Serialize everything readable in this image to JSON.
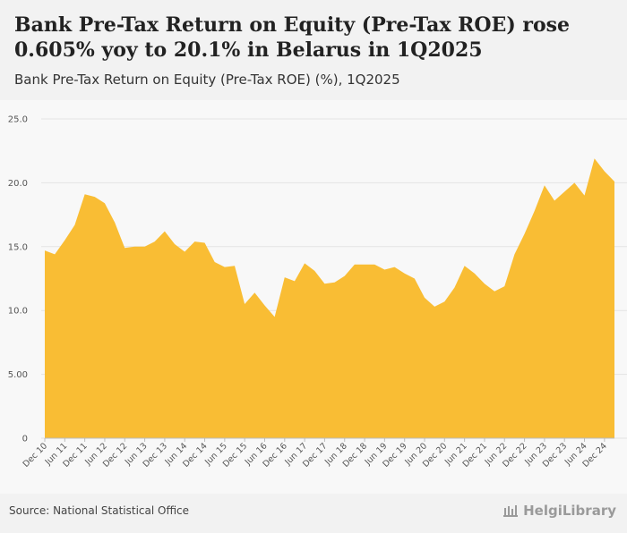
{
  "header": {
    "title": "Bank Pre-Tax Return on Equity (Pre-Tax ROE) rose 0.605% yoy to 20.1% in Belarus in 1Q2025",
    "subtitle": "Bank Pre-Tax Return on Equity (Pre-Tax ROE) (%), 1Q2025"
  },
  "footer": {
    "source": "Source: National Statistical Office",
    "brand": "HelgiLibrary"
  },
  "colors": {
    "area": "#f9bd34",
    "grid": "#e4e4e4"
  },
  "chart_data": {
    "type": "area",
    "title": "Bank Pre-Tax Return on Equity (Pre-Tax ROE) (%), 1Q2025",
    "xlabel": "",
    "ylabel": "",
    "ylim": [
      0,
      25
    ],
    "yticks": [
      "0",
      "5.00",
      "10.0",
      "15.0",
      "20.0",
      "25.0"
    ],
    "x_tick_labels": [
      "Dec 10",
      "Jun 11",
      "Dec 11",
      "Jun 12",
      "Dec 12",
      "Jun 13",
      "Dec 13",
      "Jun 14",
      "Dec 14",
      "Jun 15",
      "Dec 15",
      "Jun 16",
      "Dec 16",
      "Jun 17",
      "Dec 17",
      "Jun 18",
      "Dec 18",
      "Jun 19",
      "Dec 19",
      "Jun 20",
      "Dec 20",
      "Jun 21",
      "Dec 21",
      "Jun 22",
      "Dec 22",
      "Jun 23",
      "Dec 23",
      "Jun 24",
      "Dec 24"
    ],
    "x": [
      "Dec 10",
      "Mar 11",
      "Jun 11",
      "Sep 11",
      "Dec 11",
      "Mar 12",
      "Jun 12",
      "Sep 12",
      "Dec 12",
      "Mar 13",
      "Jun 13",
      "Sep 13",
      "Dec 13",
      "Mar 14",
      "Jun 14",
      "Sep 14",
      "Dec 14",
      "Mar 15",
      "Jun 15",
      "Sep 15",
      "Dec 15",
      "Mar 16",
      "Jun 16",
      "Sep 16",
      "Dec 16",
      "Mar 17",
      "Jun 17",
      "Sep 17",
      "Dec 17",
      "Mar 18",
      "Jun 18",
      "Sep 18",
      "Dec 18",
      "Mar 19",
      "Jun 19",
      "Sep 19",
      "Dec 19",
      "Mar 20",
      "Jun 20",
      "Sep 20",
      "Dec 20",
      "Mar 21",
      "Jun 21",
      "Sep 21",
      "Dec 21",
      "Mar 22",
      "Jun 22",
      "Sep 22",
      "Dec 22",
      "Mar 23",
      "Jun 23",
      "Sep 23",
      "Dec 23",
      "Mar 24",
      "Jun 24",
      "Sep 24",
      "Dec 24",
      "Mar 25"
    ],
    "series": [
      {
        "name": "Bank Pre-Tax ROE (%)",
        "values": [
          14.7,
          14.4,
          15.5,
          16.7,
          19.1,
          18.9,
          18.4,
          16.9,
          14.9,
          15.0,
          15.0,
          15.4,
          16.2,
          15.2,
          14.6,
          15.4,
          15.3,
          13.8,
          13.4,
          13.5,
          10.5,
          11.4,
          10.4,
          9.5,
          12.6,
          12.3,
          13.7,
          13.1,
          12.1,
          12.2,
          12.7,
          13.6,
          13.6,
          13.6,
          13.2,
          13.4,
          12.9,
          12.5,
          11.0,
          10.3,
          10.7,
          11.8,
          13.5,
          12.9,
          12.1,
          11.5,
          11.9,
          14.4,
          16.0,
          17.8,
          19.8,
          18.6,
          19.3,
          20.0,
          19.0,
          21.9,
          20.9,
          20.1
        ]
      }
    ]
  }
}
